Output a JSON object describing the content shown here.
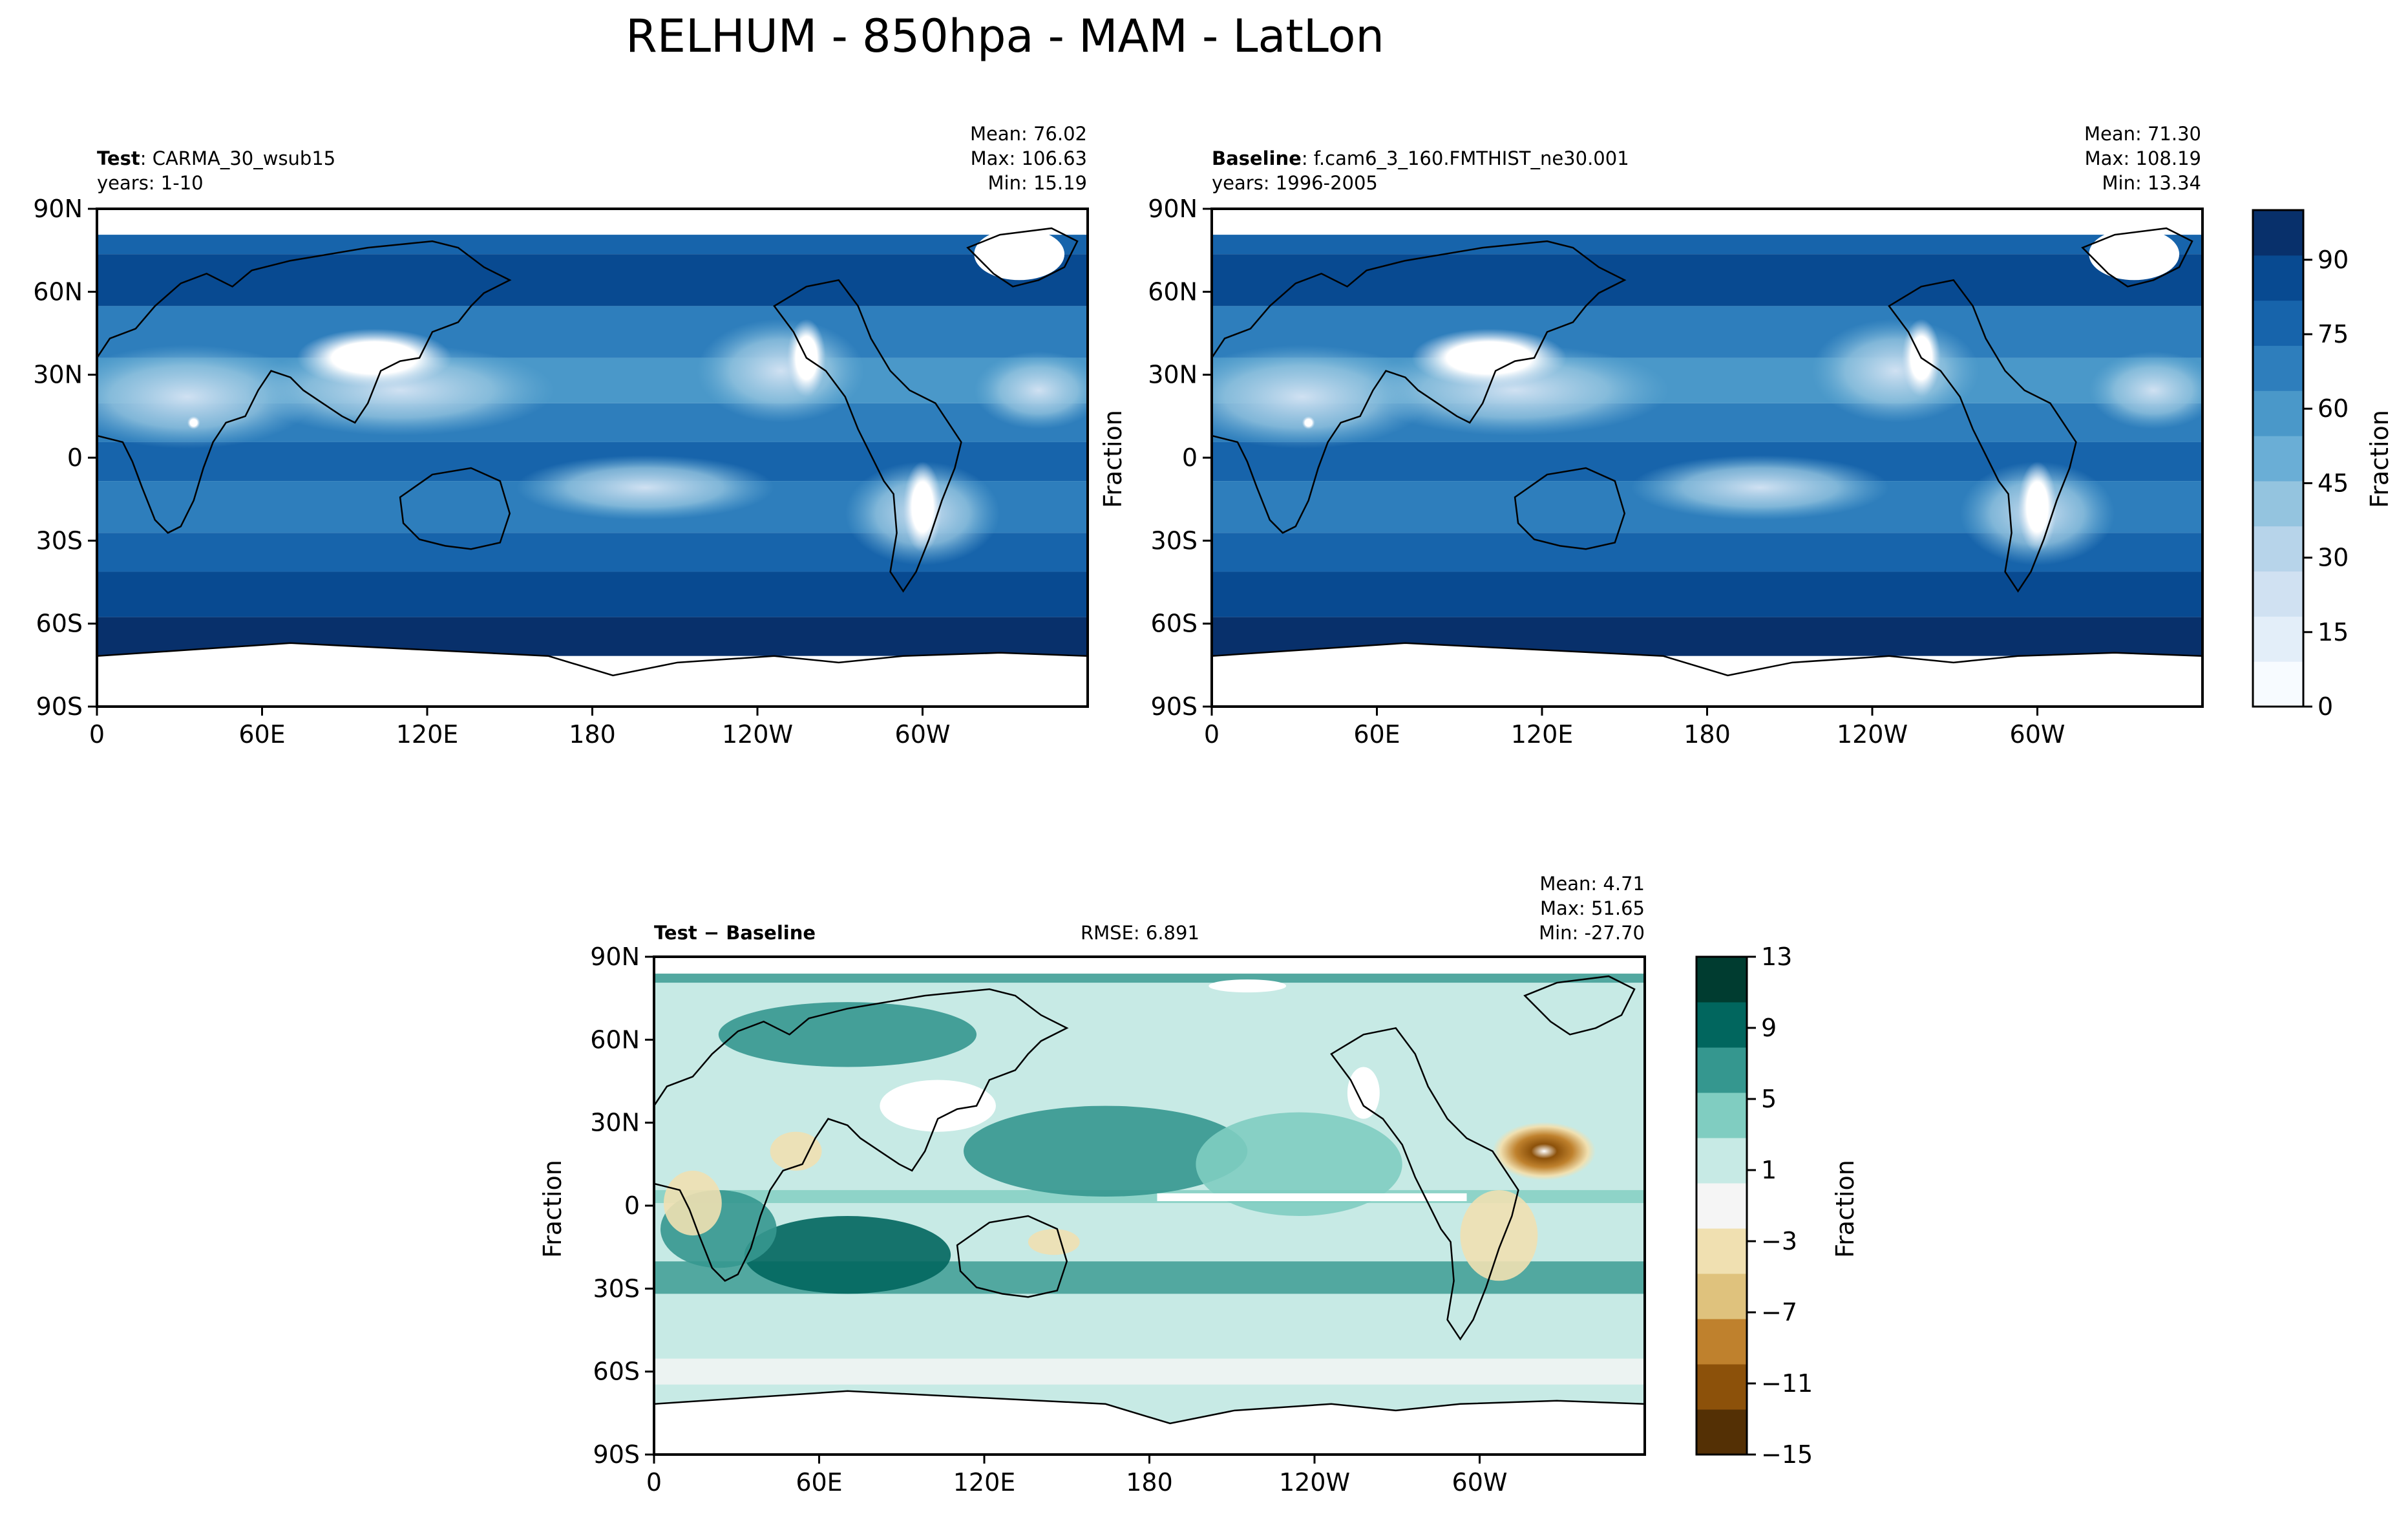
{
  "figure": {
    "title": "RELHUM - 850hpa - MAM - LatLon"
  },
  "colors": {
    "blues": [
      "#f7fbff",
      "#e3eef9",
      "#d0e1f2",
      "#b7d4ea",
      "#94c4df",
      "#6aaed6",
      "#4a98c9",
      "#2e7ebc",
      "#1764ab",
      "#084a91",
      "#08306b"
    ],
    "diff": [
      "#543005",
      "#8c510a",
      "#bf812d",
      "#dfc27d",
      "#f0e0b1",
      "#f5f5f5",
      "#c7eae5",
      "#80cdc1",
      "#35978f",
      "#01665e",
      "#003c30"
    ],
    "land": "#ffffff",
    "coast": "#000000"
  },
  "panels": {
    "test": {
      "left_label_bold": "Test",
      "left_label_rest": ": CARMA_30_wsub15",
      "years": "years: 1-10",
      "mean": "Mean: 76.02",
      "max": "Max: 106.63",
      "min": "Min: 15.19"
    },
    "baseline": {
      "left_label_bold": "Baseline",
      "left_label_rest": ": f.cam6_3_160.FMTHIST_ne30.001",
      "years": "years: 1996-2005",
      "mean": "Mean: 71.30",
      "max": "Max: 108.19",
      "min": "Min: 13.34",
      "ylabel": "Fraction"
    },
    "diff": {
      "left_label_bold": "Test − Baseline",
      "rmse": "RMSE: 6.891",
      "mean": "Mean:  4.71",
      "max": "Max: 51.65",
      "min": "Min: -27.70",
      "ylabel": "Fraction"
    }
  },
  "axes": {
    "lat_ticks": [
      "90N",
      "60N",
      "30N",
      "0",
      "30S",
      "60S",
      "90S"
    ],
    "lon_ticks": [
      "0",
      "60E",
      "120E",
      "180",
      "120W",
      "60W"
    ]
  },
  "colorbars": {
    "top": {
      "label": "Fraction",
      "ticks": [
        "0",
        "15",
        "30",
        "45",
        "60",
        "75",
        "90"
      ],
      "range": [
        0,
        100
      ]
    },
    "diff": {
      "label": "Fraction",
      "ticks": [
        "−15",
        "−11",
        "−7",
        "−3",
        "1",
        "5",
        "9",
        "13"
      ],
      "range": [
        -15,
        13
      ]
    }
  },
  "chart_data": [
    {
      "type": "heatmap",
      "title": "Test: CARMA_30_wsub15",
      "xlabel": "",
      "ylabel": "",
      "x_ticks": [
        "0",
        "60E",
        "120E",
        "180",
        "120W",
        "60W"
      ],
      "y_ticks": [
        "90N",
        "60N",
        "30N",
        "0",
        "30S",
        "60S",
        "90S"
      ],
      "stats": {
        "mean": 76.02,
        "max": 106.63,
        "min": 15.19
      },
      "colorbar_range": [
        0,
        100
      ]
    },
    {
      "type": "heatmap",
      "title": "Baseline: f.cam6_3_160.FMTHIST_ne30.001",
      "xlabel": "",
      "ylabel": "Fraction",
      "x_ticks": [
        "0",
        "60E",
        "120E",
        "180",
        "120W",
        "60W"
      ],
      "y_ticks": [
        "90N",
        "60N",
        "30N",
        "0",
        "30S",
        "60S",
        "90S"
      ],
      "stats": {
        "mean": 71.3,
        "max": 108.19,
        "min": 13.34
      },
      "colorbar_range": [
        0,
        100
      ]
    },
    {
      "type": "heatmap",
      "title": "Test − Baseline",
      "xlabel": "",
      "ylabel": "Fraction",
      "x_ticks": [
        "0",
        "60E",
        "120E",
        "180",
        "120W",
        "60W"
      ],
      "y_ticks": [
        "90N",
        "60N",
        "30N",
        "0",
        "30S",
        "60S",
        "90S"
      ],
      "stats": {
        "mean": 4.71,
        "max": 51.65,
        "min": -27.7,
        "rmse": 6.891
      },
      "colorbar_range": [
        -15,
        13
      ]
    }
  ]
}
